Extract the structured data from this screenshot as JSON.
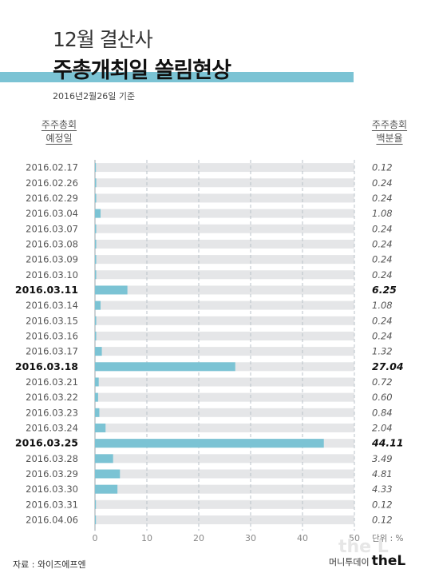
{
  "title_line1": "12월 결산사",
  "title_line2": "주총개최일 쏠림현상",
  "date_note": "2016년2월26일 기준",
  "left_header": [
    "주주총회",
    "예정일"
  ],
  "right_header": [
    "주주총회",
    "백분율"
  ],
  "unit_label": "단위 : %",
  "source": "자료 : 와이즈에프엔",
  "brand_prefix": "머니투데이",
  "brand_name": "theL",
  "watermark": "the L",
  "colors": {
    "bar": "#7bc3d4",
    "track": "#e5e6e8",
    "accent": "#7bc3d4"
  },
  "chart_data": {
    "type": "bar",
    "orientation": "horizontal",
    "categories": [
      "2016.02.17",
      "2016.02.26",
      "2016.02.29",
      "2016.03.04",
      "2016.03.07",
      "2016.03.08",
      "2016.03.09",
      "2016.03.10",
      "2016.03.11",
      "2016.03.14",
      "2016.03.15",
      "2016.03.16",
      "2016.03.17",
      "2016.03.18",
      "2016.03.21",
      "2016.03.22",
      "2016.03.23",
      "2016.03.24",
      "2016.03.25",
      "2016.03.28",
      "2016.03.29",
      "2016.03.30",
      "2016.03.31",
      "2016.04.06"
    ],
    "values": [
      0.12,
      0.24,
      0.24,
      1.08,
      0.24,
      0.24,
      0.24,
      0.24,
      6.25,
      1.08,
      0.24,
      0.24,
      1.32,
      27.04,
      0.72,
      0.6,
      0.84,
      2.04,
      44.11,
      3.49,
      4.81,
      4.33,
      0.12,
      0.12
    ],
    "value_labels": [
      "0.12",
      "0.24",
      "0.24",
      "1.08",
      "0.24",
      "0.24",
      "0.24",
      "0.24",
      "6.25",
      "1.08",
      "0.24",
      "0.24",
      "1.32",
      "27.04",
      "0.72",
      "0.60",
      "0.84",
      "2.04",
      "44.11",
      "3.49",
      "4.81",
      "4.33",
      "0.12",
      "0.12"
    ],
    "highlight": [
      "2016.03.11",
      "2016.03.18",
      "2016.03.25"
    ],
    "xlim": [
      0,
      50
    ],
    "xticks": [
      0,
      10,
      20,
      30,
      40,
      50
    ],
    "grid": "vertical dashed"
  }
}
